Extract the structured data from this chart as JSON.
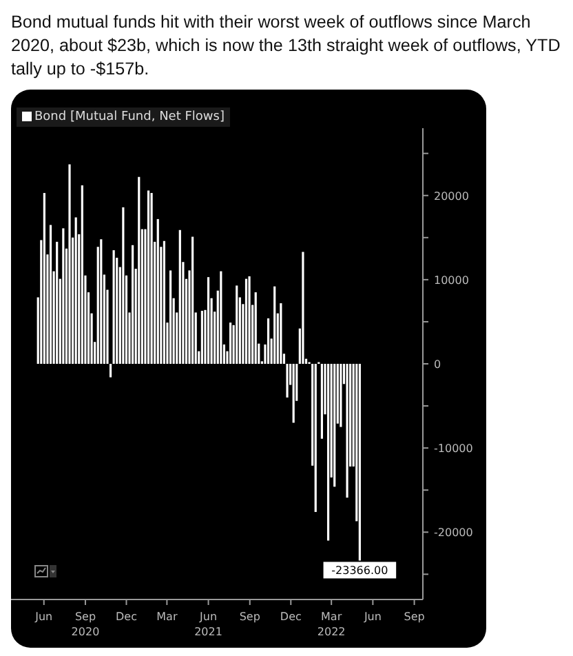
{
  "chart_data": {
    "type": "bar",
    "title": "Bond mutual funds hit with their worst week of outflows since March 2020, about $23b, which is now the 13th straight week of outflows, YTD tally up to -$157b.",
    "x": [
      "2020-05-20",
      "2020-05-27",
      "2020-06-03",
      "2020-06-10",
      "2020-06-17",
      "2020-06-24",
      "2020-07-01",
      "2020-07-08",
      "2020-07-15",
      "2020-07-22",
      "2020-07-29",
      "2020-08-05",
      "2020-08-12",
      "2020-08-19",
      "2020-08-26",
      "2020-09-02",
      "2020-09-09",
      "2020-09-16",
      "2020-09-23",
      "2020-09-30",
      "2020-10-07",
      "2020-10-14",
      "2020-10-21",
      "2020-10-28",
      "2020-11-04",
      "2020-11-11",
      "2020-11-18",
      "2020-11-25",
      "2020-12-02",
      "2020-12-09",
      "2020-12-16",
      "2020-12-23",
      "2020-12-30",
      "2021-01-06",
      "2021-01-13",
      "2021-01-20",
      "2021-01-27",
      "2021-02-03",
      "2021-02-10",
      "2021-02-17",
      "2021-02-24",
      "2021-03-03",
      "2021-03-10",
      "2021-03-17",
      "2021-03-24",
      "2021-03-31",
      "2021-04-07",
      "2021-04-14",
      "2021-04-21",
      "2021-04-28",
      "2021-05-05",
      "2021-05-12",
      "2021-05-19",
      "2021-05-26",
      "2021-06-02",
      "2021-06-09",
      "2021-06-16",
      "2021-06-23",
      "2021-06-30",
      "2021-07-07",
      "2021-07-14",
      "2021-07-21",
      "2021-07-28",
      "2021-08-04",
      "2021-08-11",
      "2021-08-18",
      "2021-08-25",
      "2021-09-01",
      "2021-09-08",
      "2021-09-15",
      "2021-09-22",
      "2021-09-29",
      "2021-10-06",
      "2021-10-13",
      "2021-10-20",
      "2021-10-27",
      "2021-11-03",
      "2021-11-10",
      "2021-11-17",
      "2021-11-24",
      "2021-12-01",
      "2021-12-08",
      "2021-12-15",
      "2021-12-22",
      "2021-12-29",
      "2022-01-05",
      "2022-01-12",
      "2022-01-19",
      "2022-01-26",
      "2022-02-02",
      "2022-02-09",
      "2022-02-16",
      "2022-02-23",
      "2022-03-02",
      "2022-03-09",
      "2022-03-16",
      "2022-03-23",
      "2022-03-30",
      "2022-04-06",
      "2022-04-13",
      "2022-04-20",
      "2022-04-27",
      "2022-05-04"
    ],
    "series": [
      {
        "name": "Bond [Mutual Fund, Net Flows]",
        "color": "#ffffff",
        "values": [
          7900,
          14700,
          20300,
          13000,
          16500,
          11000,
          14500,
          10100,
          16100,
          13700,
          23700,
          15000,
          17400,
          15400,
          21200,
          10500,
          8500,
          6000,
          2600,
          13900,
          14800,
          10600,
          8800,
          -1600,
          13500,
          12600,
          11500,
          18600,
          10500,
          6100,
          14100,
          11300,
          22200,
          16000,
          16000,
          20600,
          20300,
          14500,
          17200,
          13900,
          14600,
          4900,
          11100,
          7800,
          6100,
          15900,
          12100,
          10100,
          11100,
          15100,
          6100,
          1500,
          6300,
          6400,
          10300,
          7800,
          6200,
          8700,
          11000,
          2300,
          1500,
          4900,
          4600,
          9300,
          7900,
          7100,
          10100,
          10400,
          7000,
          8500,
          2400,
          300,
          2300,
          5400,
          3000,
          9200,
          6000,
          7200,
          1200,
          -4000,
          -2500,
          -7000,
          -4400,
          4200,
          13300,
          600,
          200,
          -12100,
          -17600,
          200,
          -8900,
          -6000,
          -21000,
          -13500,
          -14600,
          -7100,
          -7500,
          -2400,
          -15900,
          -12200,
          -12200,
          -18700,
          -23366
        ],
        "value_labels": [
          null,
          null,
          null,
          null,
          null,
          null,
          null,
          null,
          null,
          null,
          null,
          null,
          null,
          null,
          null,
          null,
          null,
          null,
          null,
          null,
          null,
          null,
          null,
          null,
          null,
          null,
          null,
          null,
          null,
          null,
          null,
          null,
          null,
          null,
          null,
          null,
          null,
          null,
          null,
          null,
          null,
          null,
          null,
          null,
          null,
          null,
          null,
          null,
          null,
          null,
          null,
          null,
          null,
          null,
          null,
          null,
          null,
          null,
          null,
          null,
          null,
          null,
          null,
          null,
          null,
          null,
          null,
          null,
          null,
          null,
          null,
          null,
          null,
          null,
          null,
          null,
          null,
          null,
          null,
          null,
          null,
          null,
          null,
          null,
          null,
          null,
          null,
          null,
          null,
          null,
          null,
          null,
          null,
          null,
          null,
          null,
          null,
          null,
          null,
          null,
          null,
          null,
          "-23366.00"
        ]
      }
    ],
    "xlim": [
      "2020-03-20",
      "2022-09-20"
    ],
    "xticks": [
      {
        "value": "2020-06-01",
        "label": "Jun"
      },
      {
        "value": "2020-09-01",
        "label": "Sep\n2020"
      },
      {
        "value": "2020-12-01",
        "label": "Dec"
      },
      {
        "value": "2021-03-01",
        "label": "Mar"
      },
      {
        "value": "2021-06-01",
        "label": "Jun\n2021"
      },
      {
        "value": "2021-09-01",
        "label": "Sep"
      },
      {
        "value": "2021-12-01",
        "label": "Dec"
      },
      {
        "value": "2022-03-01",
        "label": "Mar\n2022"
      },
      {
        "value": "2022-06-01",
        "label": "Jun"
      },
      {
        "value": "2022-09-01",
        "label": "Sep"
      }
    ],
    "ylim": [
      -28000,
      28000
    ],
    "yticks": [
      {
        "value": 25000,
        "label": null
      },
      20000,
      {
        "value": 15000,
        "label": null
      },
      10000,
      {
        "value": 5000,
        "label": null
      },
      0,
      {
        "value": -5000,
        "label": null
      },
      -10000,
      {
        "value": -15000,
        "label": null
      },
      -20000,
      {
        "value": -25000,
        "label": null
      }
    ],
    "grid": false,
    "legend": "top left"
  }
}
